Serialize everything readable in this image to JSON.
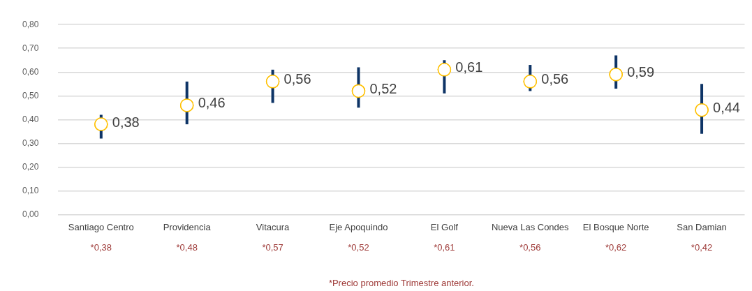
{
  "chart_data": {
    "type": "scatter",
    "categories": [
      "Santiago Centro",
      "Providencia",
      "Vitacura",
      "Eje Apoquindo",
      "El Golf",
      "Nueva Las Condes",
      "El Bosque Norte",
      "San Damian"
    ],
    "series": [
      {
        "color": "#ffc000",
        "values": [
          0.38,
          0.46,
          0.56,
          0.52,
          0.61,
          0.56,
          0.59,
          0.44
        ],
        "value_labels": [
          "0,38",
          "0,46",
          "0,56",
          "0,52",
          "0,61",
          "0,56",
          "0,59",
          "0,44"
        ],
        "errors": [
          [
            0.32,
            0.42
          ],
          [
            0.38,
            0.56
          ],
          [
            0.47,
            0.61
          ],
          [
            0.45,
            0.62
          ],
          [
            0.51,
            0.65
          ],
          [
            0.52,
            0.63
          ],
          [
            0.53,
            0.67
          ],
          [
            0.34,
            0.55
          ]
        ]
      }
    ],
    "ylim": [
      0,
      0.8
    ],
    "yticks": [
      {
        "value": 0,
        "label": "0,00"
      },
      {
        "value": 0.1,
        "label": "0,10"
      },
      {
        "value": 0.2,
        "label": "0,20"
      },
      {
        "value": 0.3,
        "label": "0,30"
      },
      {
        "value": 0.4,
        "label": "0,40"
      },
      {
        "value": 0.5,
        "label": "0,50"
      },
      {
        "value": 0.6,
        "label": "0,60"
      },
      {
        "value": 0.7,
        "label": "0,70"
      },
      {
        "value": 0.8,
        "label": "0,80"
      }
    ],
    "grid": "y",
    "legend": false,
    "marker": "circle",
    "annotations": [
      "*0,38",
      "*0,48",
      "*0,57",
      "*0,52",
      "*0,61",
      "*0,56",
      "*0,62",
      "*0,42",
      "*Precio promedio Trimestre anterior."
    ]
  }
}
